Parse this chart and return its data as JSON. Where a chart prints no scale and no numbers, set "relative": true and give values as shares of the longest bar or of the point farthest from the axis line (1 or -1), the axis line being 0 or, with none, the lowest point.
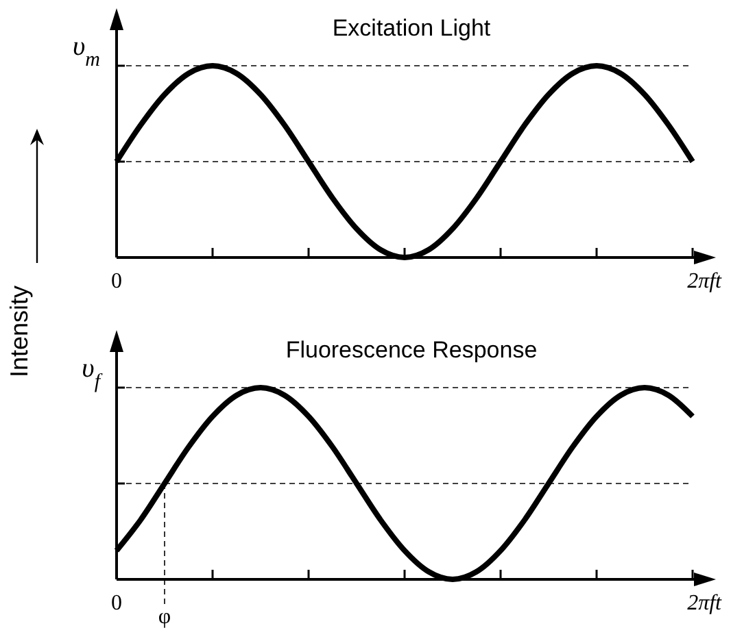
{
  "chart_data": [
    {
      "type": "line",
      "title": "Excitation Light",
      "ylabel": "Intensity",
      "xlabel": "2πft",
      "relative": true,
      "categories": [
        null,
        null,
        null,
        null,
        null,
        null,
        null,
        null,
        null,
        null,
        null,
        null,
        null,
        null,
        null,
        null,
        null,
        null,
        null,
        null,
        null,
        null,
        null,
        null,
        null
      ],
      "series": [
        {
          "color": "#000000",
          "values": [
            0.5,
            0.69,
            0.85,
            0.96,
            1,
            0.96,
            0.85,
            0.69,
            0.5,
            0.31,
            0.15,
            0.04,
            0,
            0.04,
            0.15,
            0.31,
            0.5,
            0.69,
            0.85,
            0.96,
            1,
            0.96,
            0.85,
            0.69,
            0.5
          ]
        }
      ],
      "ref_lines": [
        {
          "axis": "y",
          "value": 1,
          "label": "υ$_{m}$",
          "line_style": "dashed"
        },
        {
          "axis": "y",
          "value": 0.5,
          "line_style": "dashed"
        }
      ],
      "annotations": [
        "0"
      ]
    },
    {
      "type": "line",
      "title": "Fluorescence Response",
      "xlabel": "2πft",
      "relative": true,
      "categories": [
        null,
        null,
        null,
        null,
        null,
        null,
        null,
        null,
        null,
        null,
        null,
        null,
        null,
        null,
        null,
        null,
        null,
        null,
        null,
        null,
        null,
        null,
        null,
        null,
        null
      ],
      "series": [
        {
          "color": "#000000",
          "values": [
            0.15,
            0.31,
            0.5,
            0.69,
            0.85,
            0.96,
            1,
            0.96,
            0.85,
            0.69,
            0.5,
            0.31,
            0.15,
            0.04,
            0,
            0.04,
            0.15,
            0.31,
            0.5,
            0.69,
            0.85,
            0.96,
            1,
            0.96,
            0.85
          ]
        }
      ],
      "ref_lines": [
        {
          "axis": "y",
          "value": 1,
          "label": "υ$_{f}$",
          "line_style": "dashed"
        },
        {
          "axis": "y",
          "value": 0.5,
          "line_style": "dashed"
        }
      ],
      "annotations": [
        "0",
        {
          "text": "φ",
          "y": 0.5
        }
      ]
    }
  ]
}
